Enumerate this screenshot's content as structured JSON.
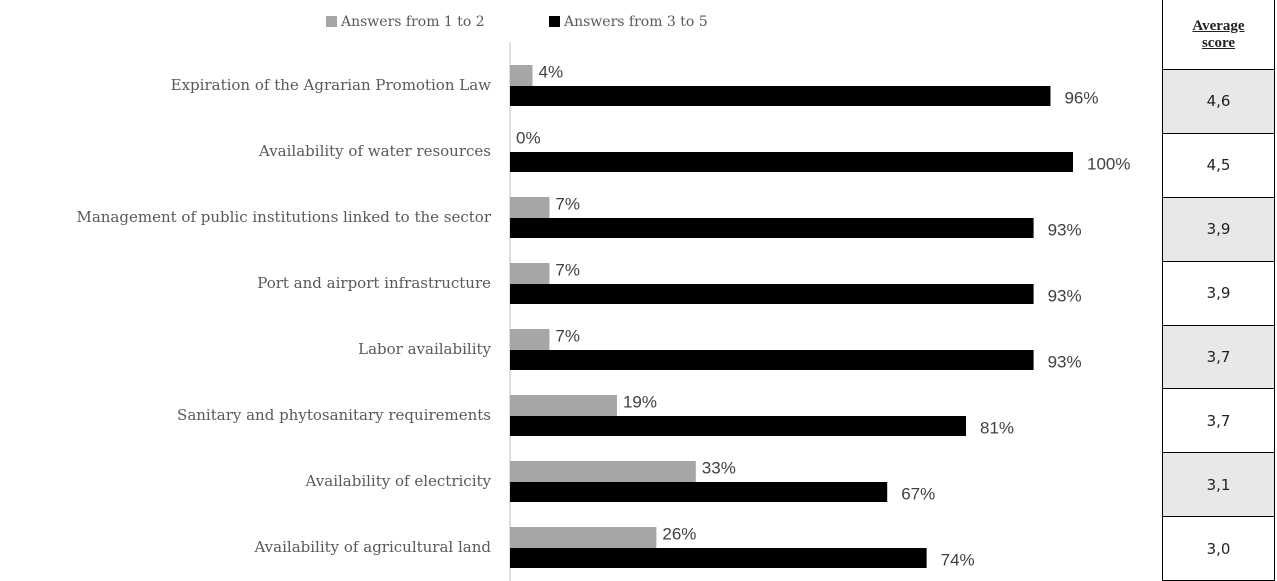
{
  "chart_data": {
    "type": "bar",
    "orientation": "horizontal",
    "categories": [
      "Expiration of the Agrarian Promotion Law",
      "Availability of water resources",
      "Management of public institutions linked to the sector",
      "Port and airport infrastructure",
      "Labor availability",
      "Sanitary and phytosanitary requirements",
      "Availability of electricity",
      "Availability of agricultural land"
    ],
    "series": [
      {
        "name": "Answers from 1 to 2",
        "color": "#a6a6a6",
        "values": [
          4,
          0,
          7,
          7,
          7,
          19,
          33,
          26
        ],
        "value_labels": [
          "4%",
          "0%",
          "7%",
          "7%",
          "7%",
          "19%",
          "33%",
          "26%"
        ]
      },
      {
        "name": "Answers from 3 to 5",
        "color": "#000000",
        "values": [
          96,
          100,
          93,
          93,
          93,
          81,
          67,
          74
        ],
        "value_labels": [
          "96%",
          "100%",
          "93%",
          "93%",
          "93%",
          "81%",
          "67%",
          "74%"
        ]
      }
    ],
    "legend": "top"
  },
  "average_score": {
    "title": "Average score",
    "values": [
      "4,6",
      "4,5",
      "3,9",
      "3,9",
      "3,7",
      "3,7",
      "3,1",
      "3,0"
    ]
  }
}
